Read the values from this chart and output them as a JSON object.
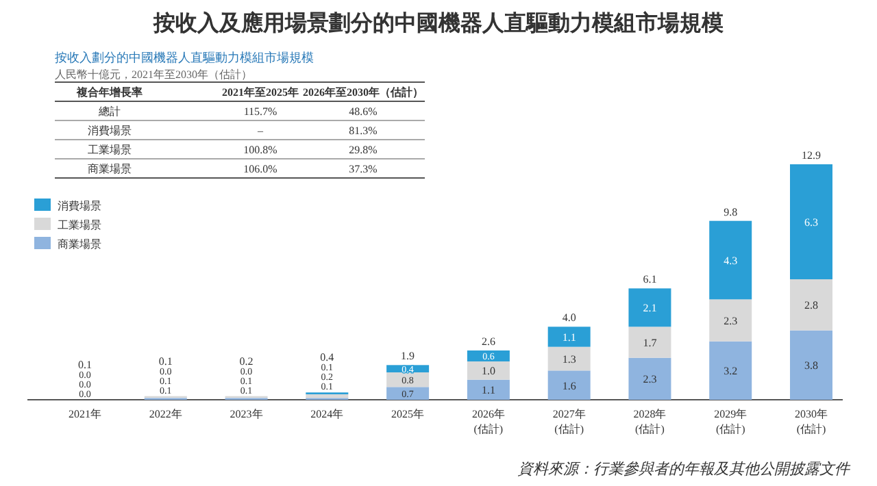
{
  "chart_data": [
    {
      "type": "bar",
      "stacked": true,
      "legend": "top left",
      "title": "按收入及應用場景劃分的中國機器人直驅動力模組市場規模",
      "subtitle": "按收入劃分的中國機器人直驅動力模組市場規模",
      "categories": [
        "2021年",
        "2022年",
        "2023年",
        "2024年",
        "2025年",
        "2026年\n(估計)",
        "2027年\n(估計)",
        "2028年\n(估計)",
        "2029年\n(估計)",
        "2030年\n(估計)"
      ],
      "series": [
        {
          "name": "商業場景",
          "color": "#8fb4df",
          "values": [
            0.0,
            0.1,
            0.1,
            0.1,
            0.7,
            1.1,
            1.6,
            2.3,
            3.2,
            3.8
          ],
          "value_labels": [
            "0.0",
            "0.1",
            "0.1",
            "0.1",
            "0.7",
            "1.1",
            "1.6",
            "2.3",
            "3.2",
            "3.8"
          ]
        },
        {
          "name": "工業場景",
          "color": "#d9d9d9",
          "values": [
            0.0,
            0.1,
            0.1,
            0.2,
            0.8,
            1.0,
            1.3,
            1.7,
            2.3,
            2.8
          ],
          "value_labels": [
            "0.0",
            "0.1",
            "0.1",
            "0.2",
            "0.8",
            "1.0",
            "1.3",
            "1.7",
            "2.3",
            "2.8"
          ]
        },
        {
          "name": "消費場景",
          "color": "#2a9fd6",
          "values": [
            0.0,
            0.0,
            0.0,
            0.1,
            0.4,
            0.6,
            1.1,
            2.1,
            4.3,
            6.3
          ],
          "value_labels": [
            "0.0",
            "0.0",
            "0.0",
            "0.1",
            "0.4",
            "0.6",
            "1.1",
            "2.1",
            "4.3",
            "6.3"
          ]
        }
      ],
      "totals": [
        "0.1",
        "0.1",
        "0.2",
        "0.4",
        "1.9",
        "2.6",
        "4.0",
        "6.1",
        "9.8",
        "12.9"
      ],
      "annotations": [
        "資料來源：行業參與者的年報及其他公開披露文件"
      ]
    },
    {
      "type": "other",
      "subtitle": "人民幣十億元，2021年至2030年（估計）",
      "annotations": [
        "複合年增長率",
        "2021年至2025年",
        "2026年至2030年（估計）",
        "總計",
        "115.7%",
        "48.6%",
        "消費場景",
        "–",
        "81.3%",
        "工業場景",
        "100.8%",
        "29.8%",
        "商業場景",
        "106.0%",
        "37.3%"
      ]
    }
  ]
}
